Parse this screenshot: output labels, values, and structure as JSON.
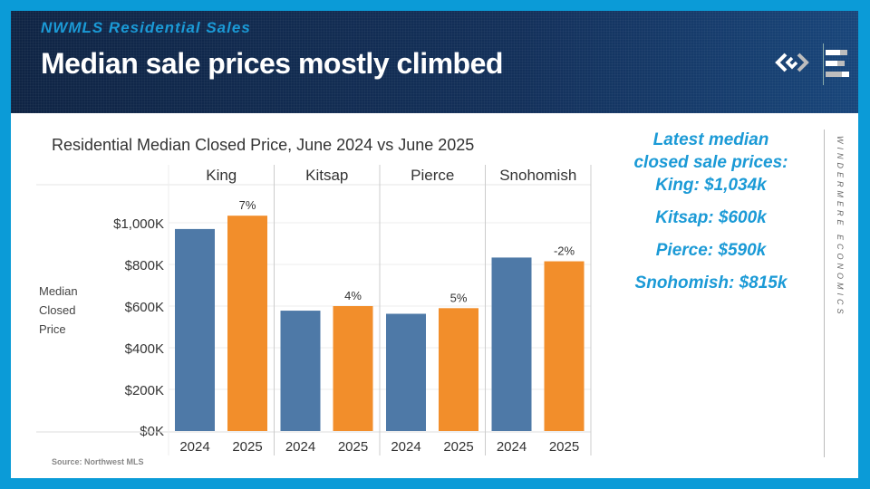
{
  "header": {
    "subtitle": "NWMLS Residential Sales",
    "title": "Median sale prices mostly climbed",
    "logo": "windermere-logo-icon"
  },
  "source": "Source: Northwest MLS",
  "sidebar": {
    "heading_line1": "Latest median",
    "heading_line2": "closed sale prices:",
    "items": [
      "King: $1,034k",
      "Kitsap: $600k",
      "Pierce: $590k",
      "Snohomish: $815k"
    ],
    "brand_vertical": "WINDERMERE ECONOMICS"
  },
  "colors": {
    "accent": "#1b9ad6",
    "series2024": "#4e79a7",
    "series2025": "#f28e2b",
    "frame": "#0b9bd7"
  },
  "chart_data": {
    "type": "bar",
    "title": "Residential Median Closed Price, June 2024 vs June 2025",
    "ylabel": "Median Closed Price",
    "ylabel_lines": [
      "Median",
      "Closed",
      "Price"
    ],
    "xlabel": "",
    "ylim": [
      0,
      1100
    ],
    "yticks": [
      0,
      200,
      400,
      600,
      800,
      1000
    ],
    "ytick_labels": [
      "$0K",
      "$200K",
      "$400K",
      "$600K",
      "$800K",
      "$1,000K"
    ],
    "grid": true,
    "legend": "none",
    "categories": [
      "King",
      "Kitsap",
      "Pierce",
      "Snohomish"
    ],
    "sub_categories": [
      "2024",
      "2025"
    ],
    "series": [
      {
        "name": "2024",
        "values": [
          970,
          578,
          563,
          833
        ]
      },
      {
        "name": "2025",
        "values": [
          1034,
          600,
          590,
          815
        ]
      }
    ],
    "annotations": [
      "7%",
      "4%",
      "5%",
      "-2%"
    ]
  }
}
